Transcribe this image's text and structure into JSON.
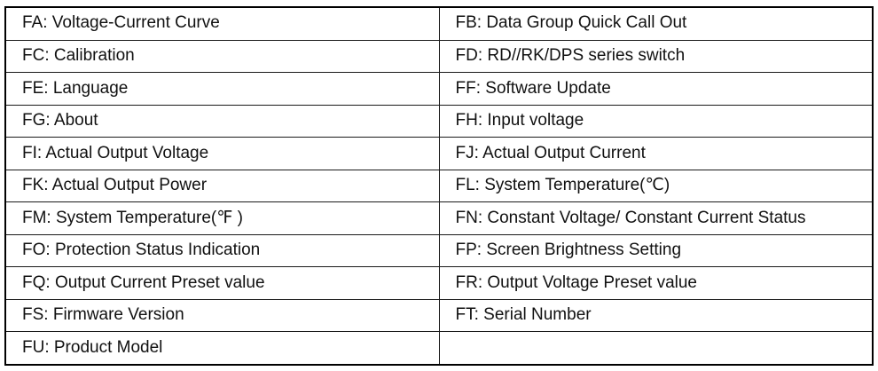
{
  "colors": {
    "border": "#000000",
    "text": "#111111",
    "background": "#ffffff"
  },
  "table": {
    "rows": [
      {
        "left": "FA: Voltage-Current Curve",
        "right": "FB: Data Group Quick Call Out"
      },
      {
        "left": "FC: Calibration",
        "right": "FD: RD//RK/DPS series switch"
      },
      {
        "left": "FE: Language",
        "right": "FF: Software Update"
      },
      {
        "left": "FG: About",
        "right": "FH: Input voltage"
      },
      {
        "left": "FI: Actual Output Voltage",
        "right": "FJ: Actual Output Current"
      },
      {
        "left": "FK: Actual Output Power",
        "right": "FL: System Temperature(℃)"
      },
      {
        "left": "FM: System Temperature(℉ )",
        "right": "FN: Constant Voltage/ Constant Current Status"
      },
      {
        "left": "FO: Protection Status Indication",
        "right": "FP: Screen Brightness Setting"
      },
      {
        "left": "FQ: Output Current Preset value",
        "right": "FR: Output Voltage Preset value"
      },
      {
        "left": "FS: Firmware Version",
        "right": "FT: Serial Number"
      },
      {
        "left": "FU: Product Model",
        "right": ""
      }
    ]
  }
}
